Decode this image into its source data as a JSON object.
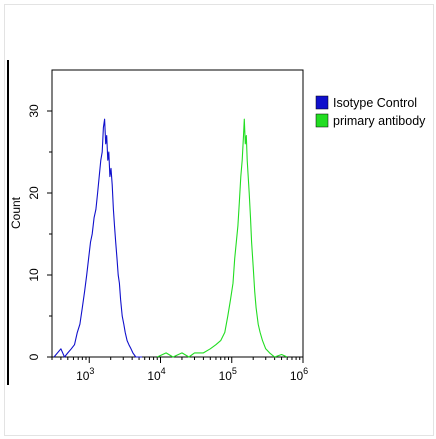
{
  "chart_data": {
    "type": "line",
    "xlabel": "",
    "ylabel": "Count",
    "x_scale": "log",
    "xlim": [
      300,
      1000000
    ],
    "ylim": [
      0,
      35
    ],
    "x_ticks": [
      {
        "value": 1000,
        "base": "10",
        "exp": "3"
      },
      {
        "value": 10000,
        "base": "10",
        "exp": "4"
      },
      {
        "value": 100000,
        "base": "10",
        "exp": "5"
      },
      {
        "value": 1000000,
        "base": "10",
        "exp": "6"
      }
    ],
    "y_ticks": [
      {
        "value": 0,
        "label": "0"
      },
      {
        "value": 10,
        "label": "10"
      },
      {
        "value": 20,
        "label": "20"
      },
      {
        "value": 30,
        "label": "30"
      }
    ],
    "grid": false,
    "legend": "right",
    "series": [
      {
        "name": "Isotype Control",
        "color": "#1010cc",
        "points": [
          [
            320,
            0
          ],
          [
            400,
            1
          ],
          [
            450,
            0
          ],
          [
            500,
            0.5
          ],
          [
            560,
            1
          ],
          [
            620,
            1.5
          ],
          [
            680,
            3
          ],
          [
            740,
            4
          ],
          [
            800,
            6
          ],
          [
            860,
            8
          ],
          [
            920,
            10
          ],
          [
            980,
            12
          ],
          [
            1040,
            14
          ],
          [
            1100,
            15
          ],
          [
            1170,
            17
          ],
          [
            1240,
            18
          ],
          [
            1310,
            20
          ],
          [
            1380,
            22
          ],
          [
            1450,
            24
          ],
          [
            1520,
            25
          ],
          [
            1580,
            28
          ],
          [
            1640,
            29
          ],
          [
            1700,
            26
          ],
          [
            1760,
            27
          ],
          [
            1820,
            24
          ],
          [
            1880,
            25
          ],
          [
            1950,
            22
          ],
          [
            2020,
            23
          ],
          [
            2100,
            21
          ],
          [
            2180,
            18
          ],
          [
            2260,
            16
          ],
          [
            2350,
            14
          ],
          [
            2450,
            12
          ],
          [
            2550,
            10
          ],
          [
            2650,
            9
          ],
          [
            2750,
            7
          ],
          [
            2900,
            5
          ],
          [
            3050,
            4
          ],
          [
            3200,
            3
          ],
          [
            3400,
            2
          ],
          [
            3600,
            1.5
          ],
          [
            3850,
            1
          ],
          [
            4100,
            0.5
          ],
          [
            4500,
            0
          ],
          [
            5500,
            0
          ]
        ]
      },
      {
        "name": "primary antibody",
        "color": "#22dd22",
        "points": [
          [
            9000,
            0
          ],
          [
            12000,
            0.5
          ],
          [
            15000,
            0
          ],
          [
            20000,
            0.5
          ],
          [
            25000,
            0
          ],
          [
            30000,
            0.5
          ],
          [
            40000,
            0.5
          ],
          [
            50000,
            1
          ],
          [
            60000,
            1.5
          ],
          [
            70000,
            2
          ],
          [
            80000,
            3
          ],
          [
            88000,
            5
          ],
          [
            96000,
            7
          ],
          [
            104000,
            9
          ],
          [
            110000,
            12
          ],
          [
            116000,
            14
          ],
          [
            122000,
            16
          ],
          [
            128000,
            19
          ],
          [
            134000,
            22
          ],
          [
            140000,
            24
          ],
          [
            146000,
            27
          ],
          [
            150000,
            29
          ],
          [
            155000,
            26
          ],
          [
            160000,
            27
          ],
          [
            165000,
            24
          ],
          [
            170000,
            22
          ],
          [
            176000,
            20
          ],
          [
            183000,
            17
          ],
          [
            190000,
            14
          ],
          [
            200000,
            11
          ],
          [
            210000,
            8
          ],
          [
            220000,
            6
          ],
          [
            235000,
            4
          ],
          [
            250000,
            3
          ],
          [
            270000,
            2
          ],
          [
            300000,
            1
          ],
          [
            340000,
            0.5
          ],
          [
            400000,
            0
          ],
          [
            500000,
            0.3
          ],
          [
            600000,
            0
          ]
        ]
      }
    ]
  }
}
